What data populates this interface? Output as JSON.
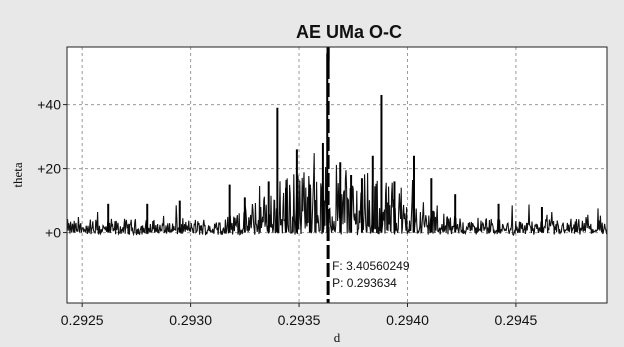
{
  "chart_data": {
    "type": "line",
    "title": "AE UMa O-C",
    "xlabel": "d",
    "ylabel": "theta",
    "xlim": [
      0.29243,
      0.29492
    ],
    "ylim": [
      -22,
      58
    ],
    "grid": true,
    "x_ticks": [
      {
        "value": 0.2925,
        "label": "0.2925"
      },
      {
        "value": 0.293,
        "label": "0.2930"
      },
      {
        "value": 0.2935,
        "label": "0.2935"
      },
      {
        "value": 0.294,
        "label": "0.2940"
      },
      {
        "value": 0.2945,
        "label": "0.2945"
      }
    ],
    "y_ticks": [
      {
        "value": 0,
        "label": "+0"
      },
      {
        "value": 20,
        "label": "+20"
      },
      {
        "value": 40,
        "label": "+40"
      }
    ],
    "marker": {
      "x": 0.293634,
      "freq_label": "F: 3.40560249",
      "period_label": "P: 0.293634"
    },
    "peaks": [
      {
        "x": 0.29262,
        "y": 9
      },
      {
        "x": 0.2928,
        "y": 9
      },
      {
        "x": 0.29295,
        "y": 10
      },
      {
        "x": 0.29318,
        "y": 15
      },
      {
        "x": 0.29325,
        "y": 11
      },
      {
        "x": 0.29336,
        "y": 16
      },
      {
        "x": 0.2934,
        "y": 39
      },
      {
        "x": 0.29344,
        "y": 14
      },
      {
        "x": 0.29349,
        "y": 26
      },
      {
        "x": 0.29355,
        "y": 15
      },
      {
        "x": 0.29361,
        "y": 28
      },
      {
        "x": 0.29363,
        "y": 56
      },
      {
        "x": 0.29369,
        "y": 22
      },
      {
        "x": 0.29374,
        "y": 18
      },
      {
        "x": 0.29379,
        "y": 17
      },
      {
        "x": 0.29384,
        "y": 24
      },
      {
        "x": 0.29388,
        "y": 43
      },
      {
        "x": 0.29394,
        "y": 16
      },
      {
        "x": 0.29403,
        "y": 24
      },
      {
        "x": 0.29411,
        "y": 17
      },
      {
        "x": 0.29422,
        "y": 12
      },
      {
        "x": 0.29442,
        "y": 9
      },
      {
        "x": 0.29462,
        "y": 8
      }
    ]
  }
}
